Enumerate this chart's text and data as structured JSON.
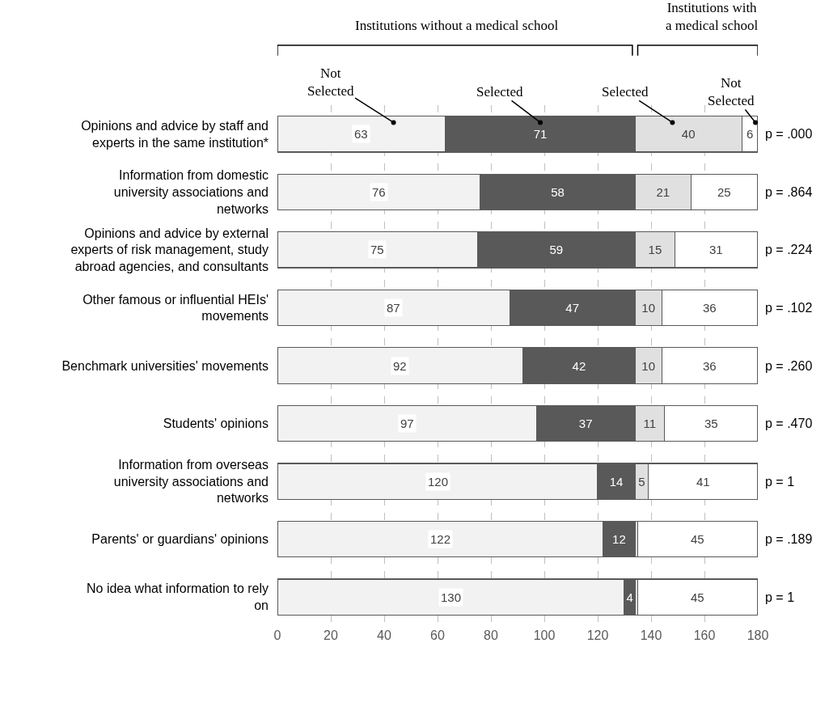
{
  "chart_data": {
    "type": "bar",
    "orientation": "horizontal",
    "stacked": true,
    "categories": [
      "Opinions and advice by staff and experts in the same institution*",
      "Information from domestic university associations and networks",
      "Opinions and advice by external experts of risk management, study abroad agencies, and consultants",
      "Other famous or influential HEIs' movements",
      "Benchmark universities' movements",
      "Students' opinions",
      "Information from overseas university associations and networks",
      "Parents' or guardians' opinions",
      "No idea what information to rely on"
    ],
    "series": [
      {
        "name": "Not Selected",
        "color": "#f2f2f2",
        "values": [
          63,
          76,
          75,
          87,
          92,
          97,
          120,
          122,
          130
        ],
        "value_labels": [
          "63",
          "76",
          "75",
          "87",
          "92",
          "97",
          "120",
          "122",
          "130"
        ]
      },
      {
        "name": "Selected",
        "color": "#595959",
        "values": [
          71,
          58,
          59,
          47,
          42,
          37,
          14,
          12,
          4
        ],
        "value_labels": [
          "71",
          "58",
          "59",
          "47",
          "42",
          "37",
          "14",
          "12",
          "4"
        ]
      },
      {
        "name": "Selected",
        "color": "#e0e0e0",
        "values": [
          40,
          21,
          15,
          10,
          10,
          11,
          5,
          1,
          1
        ],
        "value_labels": [
          "40",
          "21",
          "15",
          "10",
          "10",
          "11",
          "5",
          null,
          null
        ]
      },
      {
        "name": "Not Selected",
        "color": "#ffffff",
        "values": [
          6,
          25,
          31,
          36,
          36,
          35,
          41,
          45,
          45
        ],
        "value_labels": [
          "6",
          "25",
          "31",
          "36",
          "36",
          "35",
          "41",
          "45",
          "45"
        ]
      }
    ],
    "xlim": [
      0,
      180
    ],
    "xticks": [
      0,
      20,
      40,
      60,
      80,
      100,
      120,
      140,
      160,
      180
    ],
    "grid": "x",
    "annotations": [
      "Institutions without a medical school",
      "Institutions with a medical school",
      "p = .000",
      "p = .864",
      "p = .224",
      "p = .102",
      "p = .260",
      "p = .470",
      "p = 1",
      "p = .189",
      "p = 1"
    ]
  }
}
